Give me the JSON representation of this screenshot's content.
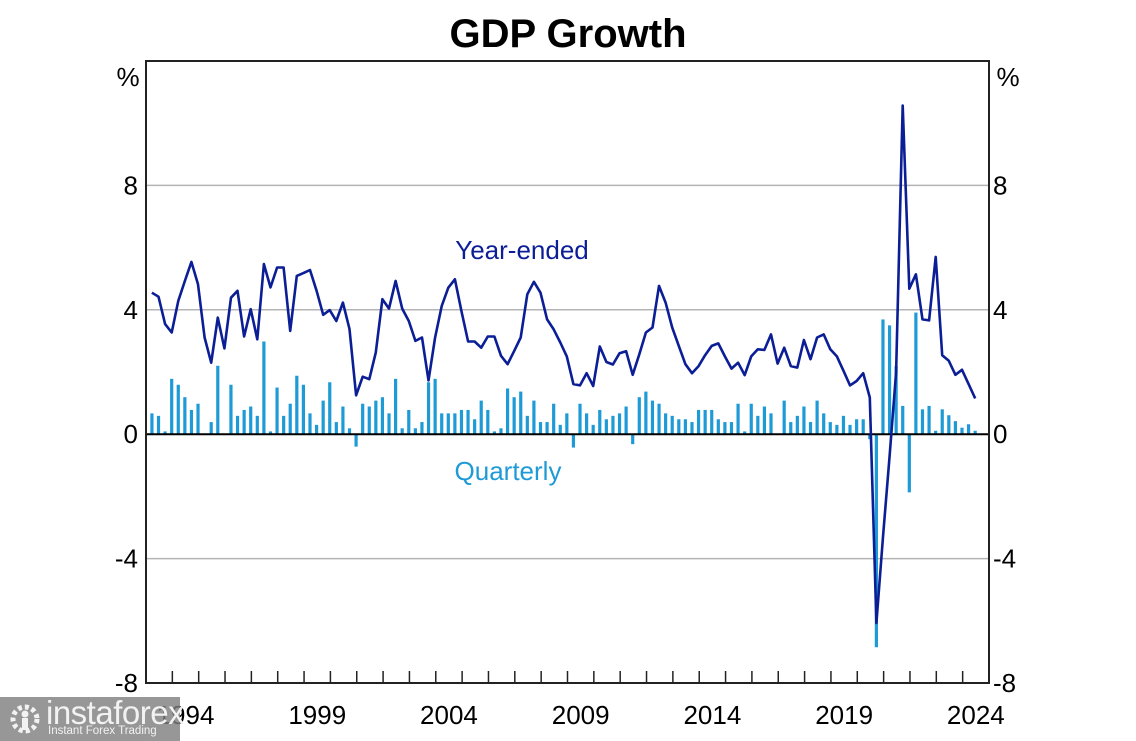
{
  "chart_data": {
    "type": "bar+line",
    "title": "GDP Growth",
    "ylabel_left": "%",
    "ylabel_right": "%",
    "ylim": [
      -8,
      12
    ],
    "yticks": [
      -8,
      -4,
      0,
      4,
      8
    ],
    "ytick_labels": [
      "-8",
      "-4",
      "0",
      "4",
      "8"
    ],
    "gridlines": [
      -4,
      4,
      8
    ],
    "x_start_year": 1993,
    "x_end_year": 2024,
    "xtick_labels": [
      "1994",
      "1999",
      "2004",
      "2009",
      "2014",
      "2019",
      "2024"
    ],
    "frequency": "quarterly",
    "first_period": "1993-Q1",
    "series": [
      {
        "name": "Year-ended",
        "type": "line",
        "color": "#0b1e96",
        "values": [
          4.55,
          4.42,
          3.54,
          3.27,
          4.29,
          4.93,
          5.54,
          4.82,
          3.11,
          2.3,
          3.75,
          2.76,
          4.39,
          4.61,
          3.14,
          4.02,
          3.05,
          5.47,
          4.72,
          5.36,
          5.36,
          3.32,
          5.09,
          5.18,
          5.28,
          4.61,
          3.84,
          3.99,
          3.64,
          4.23,
          3.38,
          1.25,
          1.85,
          1.77,
          2.63,
          4.34,
          4.04,
          4.93,
          4.04,
          3.64,
          3.0,
          3.11,
          1.73,
          3.11,
          4.12,
          4.71,
          4.98,
          3.95,
          2.98,
          2.98,
          2.78,
          3.14,
          3.14,
          2.52,
          2.25,
          2.68,
          3.11,
          4.5,
          4.9,
          4.55,
          3.69,
          3.37,
          2.95,
          2.5,
          1.61,
          1.57,
          1.96,
          1.55,
          2.82,
          2.32,
          2.24,
          2.6,
          2.67,
          1.91,
          2.57,
          3.27,
          3.43,
          4.77,
          4.23,
          3.43,
          2.84,
          2.25,
          1.96,
          2.19,
          2.54,
          2.84,
          2.92,
          2.5,
          2.11,
          2.3,
          1.9,
          2.5,
          2.73,
          2.71,
          3.21,
          2.27,
          2.78,
          2.19,
          2.14,
          3.03,
          2.41,
          3.11,
          3.21,
          2.73,
          2.5,
          2.04,
          1.57,
          1.71,
          1.96,
          1.18,
          -6.07,
          -3.3,
          -0.7,
          1.99,
          10.57,
          4.68,
          5.14,
          3.69,
          3.66,
          5.7,
          2.54,
          2.36,
          1.91,
          2.07,
          1.61,
          1.15
        ]
      },
      {
        "name": "Quarterly",
        "type": "bar",
        "color": "#1e9bd7",
        "values": [
          0.67,
          0.59,
          0.09,
          1.78,
          1.59,
          1.19,
          0.78,
          0.98,
          0.0,
          0.39,
          2.2,
          0.0,
          1.59,
          0.59,
          0.78,
          0.89,
          0.59,
          2.98,
          0.09,
          1.5,
          0.59,
          0.98,
          1.88,
          1.59,
          0.67,
          0.3,
          1.08,
          1.67,
          0.39,
          0.89,
          0.19,
          -0.4,
          0.98,
          0.89,
          1.08,
          1.19,
          0.67,
          1.78,
          0.19,
          0.78,
          0.19,
          0.39,
          1.67,
          1.78,
          0.67,
          0.67,
          0.67,
          0.78,
          0.78,
          0.48,
          1.08,
          0.78,
          0.09,
          0.19,
          1.47,
          1.19,
          1.37,
          0.59,
          1.08,
          0.39,
          0.39,
          0.98,
          0.3,
          0.67,
          -0.43,
          0.98,
          0.67,
          0.3,
          0.78,
          0.48,
          0.59,
          0.67,
          0.89,
          -0.32,
          1.19,
          1.37,
          1.08,
          0.98,
          0.67,
          0.59,
          0.48,
          0.48,
          0.39,
          0.78,
          0.78,
          0.78,
          0.48,
          0.39,
          0.39,
          0.98,
          0.09,
          0.98,
          0.59,
          0.89,
          0.67,
          0.0,
          1.08,
          0.39,
          0.59,
          0.89,
          0.39,
          1.08,
          0.67,
          0.39,
          0.3,
          0.59,
          0.3,
          0.48,
          0.48,
          -0.16,
          -6.85,
          3.69,
          3.5,
          2.19,
          0.91,
          -1.87,
          3.91,
          0.8,
          0.91,
          0.11,
          0.8,
          0.61,
          0.42,
          0.21,
          0.32,
          0.11
        ]
      }
    ],
    "annotations": [
      {
        "text": "Year-ended",
        "series": "Year-ended"
      },
      {
        "text": "Quarterly",
        "series": "Quarterly"
      }
    ],
    "grid": true,
    "legend": "inline labels"
  },
  "watermark": {
    "brand": "instaforex",
    "tagline": "Instant Forex Trading"
  }
}
